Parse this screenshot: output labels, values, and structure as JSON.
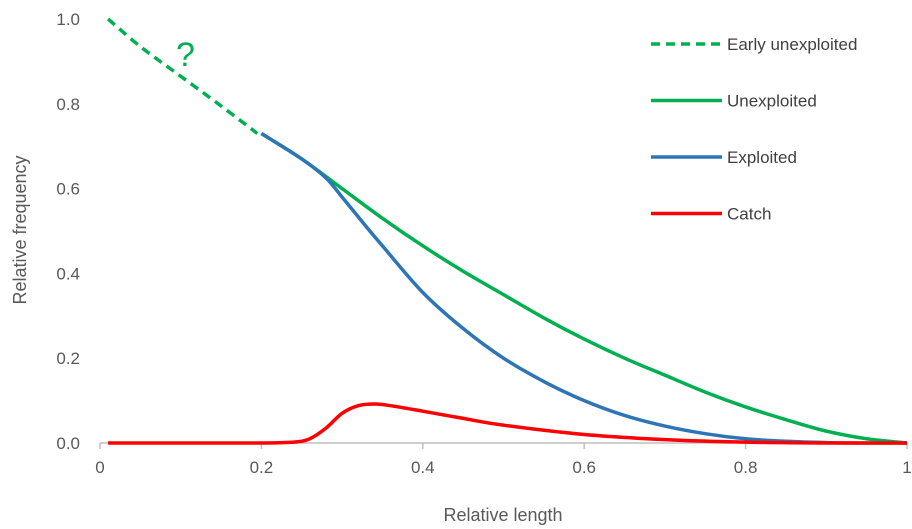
{
  "chart_data": {
    "type": "line",
    "title": "",
    "xlabel": "Relative length",
    "ylabel": "Relative frequency",
    "xlim": [
      0,
      1
    ],
    "ylim": [
      0,
      1
    ],
    "x_ticks": [
      0,
      0.2,
      0.4,
      0.6,
      0.8,
      1
    ],
    "x_tick_labels": [
      "0",
      "0.2",
      "0.4",
      "0.6",
      "0.8",
      "1"
    ],
    "y_ticks": [
      0,
      0.2,
      0.4,
      0.6,
      0.8,
      1
    ],
    "y_tick_labels": [
      "0.0",
      "0.2",
      "0.4",
      "0.6",
      "0.8",
      "1.0"
    ],
    "grid": false,
    "legend_position": "top-right",
    "annotation": "?",
    "series": [
      {
        "name": "Early unexploited",
        "color": "#00b050",
        "style": "dashed",
        "x": [
          0.01,
          0.05,
          0.1,
          0.15,
          0.195
        ],
        "y": [
          1.0,
          0.935,
          0.865,
          0.795,
          0.73
        ]
      },
      {
        "name": "Unexploited",
        "color": "#00b050",
        "style": "solid",
        "x": [
          0.2,
          0.25,
          0.3,
          0.35,
          0.4,
          0.45,
          0.5,
          0.55,
          0.6,
          0.65,
          0.7,
          0.75,
          0.8,
          0.85,
          0.9,
          0.95,
          1.0
        ],
        "y": [
          0.73,
          0.67,
          0.6,
          0.53,
          0.465,
          0.405,
          0.35,
          0.295,
          0.245,
          0.2,
          0.16,
          0.12,
          0.085,
          0.055,
          0.028,
          0.01,
          0.0
        ]
      },
      {
        "name": "Exploited",
        "color": "#2e75b6",
        "style": "solid",
        "x": [
          0.2,
          0.25,
          0.28,
          0.3,
          0.33,
          0.35,
          0.4,
          0.45,
          0.5,
          0.55,
          0.6,
          0.65,
          0.7,
          0.75,
          0.8,
          0.85,
          0.9,
          0.95,
          1.0
        ],
        "y": [
          0.73,
          0.67,
          0.625,
          0.58,
          0.51,
          0.465,
          0.355,
          0.27,
          0.2,
          0.145,
          0.1,
          0.065,
          0.04,
          0.022,
          0.01,
          0.004,
          0.001,
          0.0,
          0.0
        ]
      },
      {
        "name": "Catch",
        "color": "#ff0000",
        "style": "solid",
        "x": [
          0.01,
          0.1,
          0.2,
          0.24,
          0.26,
          0.28,
          0.3,
          0.32,
          0.34,
          0.36,
          0.4,
          0.45,
          0.5,
          0.6,
          0.7,
          0.8,
          0.9,
          1.0
        ],
        "y": [
          0.0,
          0.0,
          0.0,
          0.002,
          0.01,
          0.035,
          0.07,
          0.088,
          0.092,
          0.088,
          0.075,
          0.058,
          0.042,
          0.02,
          0.008,
          0.002,
          0.0,
          0.0
        ]
      }
    ]
  }
}
